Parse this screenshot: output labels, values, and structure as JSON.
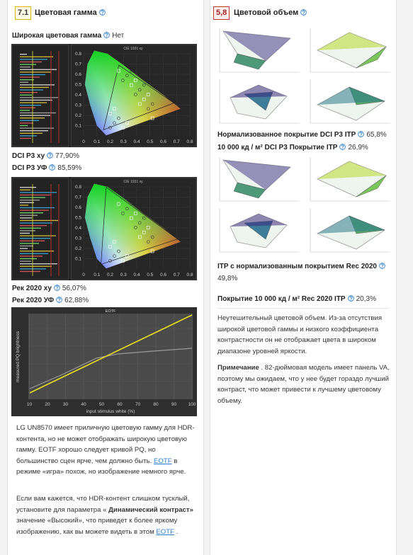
{
  "left": {
    "score": "7.1",
    "title": "Цветовая гамма",
    "wide_label": "Широкая цветовая гамма",
    "wide_value": "Нет",
    "metrics": [
      {
        "label": "DCI P3 xy",
        "value": "77,90%"
      },
      {
        "label": "DCI P3 УФ",
        "value": "85,59%"
      },
      {
        "label": "Рек 2020 xy",
        "value": "56,07%"
      },
      {
        "label": "Рек 2020 УФ",
        "value": "62,88%"
      }
    ],
    "paragraphs": [
      [
        {
          "text": "LG UN8570 имеет приличную цветовую гамму для HDR-контента, но не может отображать широкую цветовую гамму. EOTF хорошо следует кривой PQ, но большинство сцен ярче, чем должно быть. "
        },
        {
          "text": "EOTF",
          "style": "link"
        },
        {
          "text": " в режиме «игра» похож, но изображение немного ярче."
        }
      ],
      [
        {
          "text": "Если вам кажется, что HDR-контент слишком тусклый, установите для параметра « "
        },
        {
          "text": "Динамический контраст»",
          "style": "bold"
        },
        {
          "text": " значение «Высокий», что приведет к более яркому изображению, как вы можете видеть в этом "
        },
        {
          "text": "EOTF",
          "style": "link"
        },
        {
          "text": " ."
        }
      ]
    ]
  },
  "cie": {
    "title": "CIE 1931 xy",
    "xticks": [
      0,
      0.1,
      0.2,
      0.3,
      0.4,
      0.5,
      0.6,
      0.7,
      0.8
    ],
    "yticks": [
      0.1,
      0.2,
      0.3,
      0.4,
      0.5,
      0.6,
      0.7,
      0.8
    ]
  },
  "eotf": {
    "title": "EOTF",
    "ylabel": "measured PQ brightness",
    "xlabel": "input stimulus white (%)",
    "xticks": [
      10,
      20,
      30,
      40,
      50,
      60,
      70,
      80,
      90,
      100
    ]
  },
  "right": {
    "score": "5,8",
    "title": "Цветовой объем",
    "metrics": [
      {
        "label": "Нормализованное покрытие DCI P3 ITP",
        "value": "65,8%"
      },
      {
        "label": "10 000 кд / м² DCI P3 Покрытие ITP",
        "value": "26,9%"
      },
      {
        "label": "ITP с нормализованным покрытием Rec 2020",
        "value": "49,8%"
      },
      {
        "label": "Покрытие 10 000 кд / м² Rec 2020 ITP",
        "value": "20,3%"
      }
    ],
    "paragraphs": [
      [
        {
          "text": "Неутешительный цветовой объем. Из-за отсутствия широкой цветовой гаммы и низкого коэффициента контрастности он не отображает цвета в широком диапазоне уровней яркости."
        }
      ],
      [
        {
          "text": "Примечание",
          "style": "bold"
        },
        {
          "text": " . 82-дюймовая модель имеет панель VA, поэтому мы ожидаем, что у нее будет гораздо лучший контраст, что может привести к лучшему цветовому объему."
        }
      ]
    ]
  }
}
